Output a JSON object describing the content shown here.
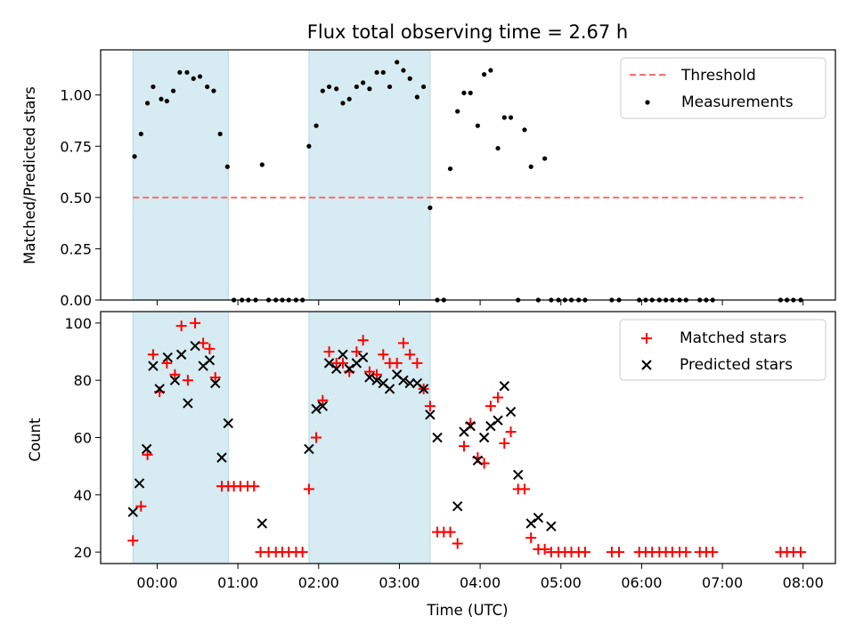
{
  "chart_data": [
    {
      "type": "scatter",
      "title": "Flux total observing time = 2.67 h",
      "xlabel": "",
      "ylabel": "Matched/Predicted stars",
      "xlim": [
        -0.7,
        8.4
      ],
      "ylim": [
        0,
        1.22
      ],
      "yticks": [
        "0.00",
        "0.25",
        "0.50",
        "0.75",
        "1.00"
      ],
      "ytick_values": [
        0,
        0.25,
        0.5,
        0.75,
        1.0
      ],
      "x_tick_values": [
        0,
        1,
        2,
        3,
        4,
        5,
        6,
        7,
        8
      ],
      "shaded_intervals": [
        [
          -0.3,
          0.88
        ],
        [
          1.88,
          3.38
        ]
      ],
      "threshold": {
        "name": "Threshold",
        "value": 0.5,
        "x_range": [
          -0.3,
          8.0
        ],
        "color": "#ff6b6b"
      },
      "legend": [
        "Threshold",
        "Measurements"
      ],
      "legend_position": "top-right",
      "series": [
        {
          "name": "Measurements",
          "color": "#000000",
          "x": [
            -0.28,
            -0.2,
            -0.12,
            -0.05,
            0.05,
            0.12,
            0.2,
            0.28,
            0.37,
            0.45,
            0.53,
            0.62,
            0.7,
            0.78,
            0.87,
            0.95,
            1.05,
            1.13,
            1.22,
            1.3,
            1.38,
            1.47,
            1.55,
            1.63,
            1.72,
            1.8,
            1.88,
            1.97,
            2.05,
            2.13,
            2.22,
            2.3,
            2.38,
            2.47,
            2.55,
            2.63,
            2.72,
            2.8,
            2.88,
            2.97,
            3.05,
            3.13,
            3.22,
            3.3,
            3.38,
            3.47,
            3.55,
            3.63,
            3.72,
            3.8,
            3.88,
            3.97,
            4.05,
            4.13,
            4.22,
            4.3,
            4.38,
            4.47,
            4.55,
            4.63,
            4.72,
            4.8,
            4.88,
            4.97,
            5.05,
            5.13,
            5.22,
            5.3,
            5.63,
            5.72,
            5.97,
            6.05,
            6.13,
            6.22,
            6.3,
            6.38,
            6.47,
            6.55,
            6.72,
            6.8,
            6.88,
            7.72,
            7.8,
            7.88,
            7.97
          ],
          "y": [
            0.7,
            0.81,
            0.96,
            1.04,
            0.98,
            0.97,
            1.02,
            1.11,
            1.11,
            1.08,
            1.09,
            1.04,
            1.02,
            0.81,
            0.65,
            0,
            0,
            0,
            0,
            0.66,
            0,
            0,
            0,
            0,
            0,
            0,
            0.75,
            0.85,
            1.02,
            1.04,
            1.03,
            0.96,
            0.98,
            1.04,
            1.06,
            1.03,
            1.11,
            1.11,
            1.04,
            1.16,
            1.12,
            1.08,
            0.99,
            1.04,
            0.45,
            0,
            0,
            0.64,
            0.92,
            1.01,
            1.01,
            0.85,
            1.1,
            1.12,
            0.74,
            0.89,
            0.89,
            0,
            0.83,
            0.65,
            0,
            0.69,
            0,
            0,
            0,
            0,
            0,
            0,
            0,
            0,
            0,
            0,
            0,
            0,
            0,
            0,
            0,
            0,
            0,
            0,
            0,
            0,
            0,
            0,
            0
          ]
        }
      ]
    },
    {
      "type": "scatter",
      "title": "",
      "xlabel": "Time (UTC)",
      "ylabel": "Count",
      "xlim": [
        -0.7,
        8.4
      ],
      "ylim": [
        16,
        104
      ],
      "yticks": [
        "20",
        "40",
        "60",
        "80",
        "100"
      ],
      "ytick_values": [
        20,
        40,
        60,
        80,
        100
      ],
      "xticks": [
        "00:00",
        "01:00",
        "02:00",
        "03:00",
        "04:00",
        "05:00",
        "06:00",
        "07:00",
        "08:00"
      ],
      "x_tick_values": [
        0,
        1,
        2,
        3,
        4,
        5,
        6,
        7,
        8
      ],
      "shaded_intervals": [
        [
          -0.3,
          0.88
        ],
        [
          1.88,
          3.38
        ]
      ],
      "legend": [
        "Matched stars",
        "Predicted stars"
      ],
      "legend_position": "top-right",
      "series": [
        {
          "name": "Matched stars",
          "color": "#ff0000",
          "marker": "+",
          "x": [
            -0.3,
            -0.2,
            -0.12,
            -0.05,
            0.03,
            0.12,
            0.22,
            0.3,
            0.38,
            0.47,
            0.57,
            0.65,
            0.72,
            0.8,
            0.88,
            0.95,
            1.03,
            1.12,
            1.2,
            1.28,
            1.38,
            1.47,
            1.55,
            1.63,
            1.72,
            1.8,
            1.88,
            1.97,
            2.05,
            2.13,
            2.22,
            2.3,
            2.38,
            2.47,
            2.55,
            2.63,
            2.72,
            2.8,
            2.88,
            2.97,
            3.05,
            3.13,
            3.22,
            3.3,
            3.38,
            3.47,
            3.55,
            3.63,
            3.72,
            3.8,
            3.88,
            3.97,
            4.05,
            4.13,
            4.22,
            4.3,
            4.38,
            4.47,
            4.55,
            4.63,
            4.72,
            4.8,
            4.88,
            4.97,
            5.05,
            5.13,
            5.22,
            5.3,
            5.63,
            5.72,
            5.97,
            6.05,
            6.13,
            6.22,
            6.3,
            6.38,
            6.47,
            6.55,
            6.72,
            6.8,
            6.88,
            7.72,
            7.8,
            7.88,
            7.97
          ],
          "y": [
            24,
            36,
            54,
            89,
            76,
            86,
            82,
            99,
            80,
            100,
            93,
            91,
            81,
            43,
            43,
            43,
            43,
            43,
            43,
            20,
            20,
            20,
            20,
            20,
            20,
            20,
            42,
            60,
            73,
            90,
            86,
            86,
            83,
            90,
            94,
            83,
            82,
            89,
            86,
            86,
            93,
            89,
            86,
            77,
            71,
            27,
            27,
            27,
            23,
            57,
            65,
            53,
            51,
            71,
            74,
            58,
            62,
            42,
            42,
            25,
            21,
            21,
            20,
            20,
            20,
            20,
            20,
            20,
            20,
            20,
            20,
            20,
            20,
            20,
            20,
            20,
            20,
            20,
            20,
            20,
            20,
            20,
            20,
            20,
            20
          ]
        },
        {
          "name": "Predicted stars",
          "color": "#000000",
          "marker": "x",
          "x": [
            -0.3,
            -0.22,
            -0.13,
            -0.05,
            0.03,
            0.13,
            0.22,
            0.3,
            0.38,
            0.47,
            0.57,
            0.65,
            0.72,
            0.8,
            0.88,
            1.3,
            1.88,
            1.97,
            2.05,
            2.13,
            2.22,
            2.3,
            2.38,
            2.47,
            2.55,
            2.63,
            2.72,
            2.8,
            2.88,
            2.97,
            3.05,
            3.13,
            3.22,
            3.3,
            3.38,
            3.47,
            3.72,
            3.8,
            3.88,
            3.97,
            4.05,
            4.13,
            4.22,
            4.3,
            4.38,
            4.47,
            4.63,
            4.72,
            4.88
          ],
          "y": [
            34,
            44,
            56,
            85,
            77,
            88,
            80,
            89,
            72,
            92,
            85,
            87,
            79,
            53,
            65,
            30,
            56,
            70,
            71,
            86,
            84,
            89,
            84,
            86,
            88,
            81,
            80,
            79,
            77,
            82,
            80,
            79,
            79,
            77,
            68,
            60,
            36,
            62,
            64,
            52,
            60,
            64,
            66,
            78,
            69,
            47,
            30,
            32,
            29
          ]
        }
      ]
    }
  ]
}
